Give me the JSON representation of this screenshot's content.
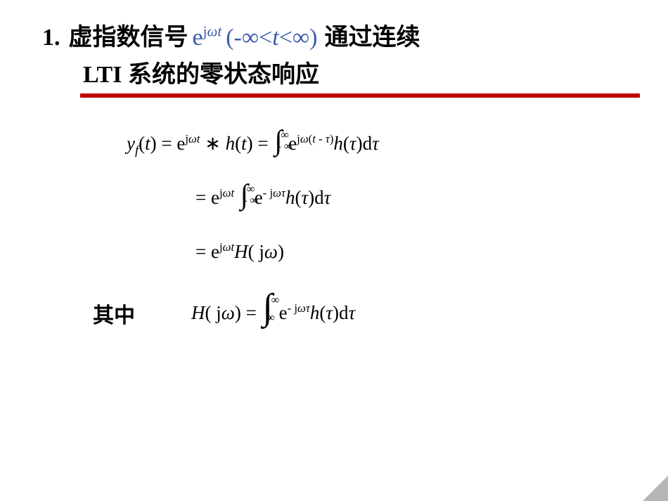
{
  "title": {
    "number": "1.",
    "cn_part1": "虚指数信号",
    "math_exp": "e",
    "math_sup_j": "j",
    "math_sup_omega": "ω",
    "math_sup_t": "t",
    "range": "(-∞<",
    "range_t": "t",
    "range_end": "<∞)",
    "cn_part2": "通过连续",
    "line2_lti": "LTI ",
    "line2_cn": "系统的零状态响应"
  },
  "eq1": {
    "y": "y",
    "fsub": "f",
    "t_paren": "(",
    "t": "t",
    "t_paren2": ") = e",
    "sup1_j": "j",
    "sup1_w": "ω",
    "sup1_t": "t",
    "conv": " ∗ ",
    "h": "h",
    "ht_paren": "(",
    "ht_t": "t",
    "ht_paren2": ")  = ",
    "int_ub": "∞",
    "int_lb": "- ∞",
    "post_int": " e",
    "sup2_j": "j",
    "sup2_w": "ω",
    "sup2_paren": "(",
    "sup2_t": "t",
    "sup2_minus": " - ",
    "sup2_tau": "τ",
    "sup2_paren2": ")",
    "h2": "h",
    "h2_paren": "(",
    "h2_tau": "τ",
    "h2_paren2": ")d",
    "dtau": "τ"
  },
  "eq2": {
    "pre": "= e",
    "sup1_j": "j",
    "sup1_w": "ω",
    "sup1_t": "t",
    "int_ub": "∞",
    "int_lb": "- ∞",
    "post_int": " e",
    "sup2_minus": "- ",
    "sup2_j": "j",
    "sup2_w": "ω",
    "sup2_tau": "τ",
    "h": "h",
    "h_paren": "(",
    "h_tau": "τ",
    "h_paren2": ")d",
    "dtau": "τ"
  },
  "eq3": {
    "pre": "= e",
    "sup_j": "j",
    "sup_w": "ω",
    "sup_t": "t",
    "H": "H",
    "paren": "( j",
    "omega": "ω",
    "paren2": ")"
  },
  "qizhong": "其中",
  "eq4": {
    "H": "H",
    "paren": "( j",
    "omega": "ω",
    "paren2": ") = ",
    "int_ub": "∞",
    "int_lb": "- ∞",
    "post_int": " e",
    "sup_minus": "- ",
    "sup_j": "j",
    "sup_w": "ω",
    "sup_tau": "τ",
    "h": "h",
    "h_paren": "(",
    "h_tau": "τ",
    "h_paren2": ")d",
    "dtau": "τ"
  },
  "colors": {
    "accent_red": "#c00000",
    "accent_blue": "#3b5caa",
    "text": "#000000",
    "bg": "#ffffff"
  }
}
